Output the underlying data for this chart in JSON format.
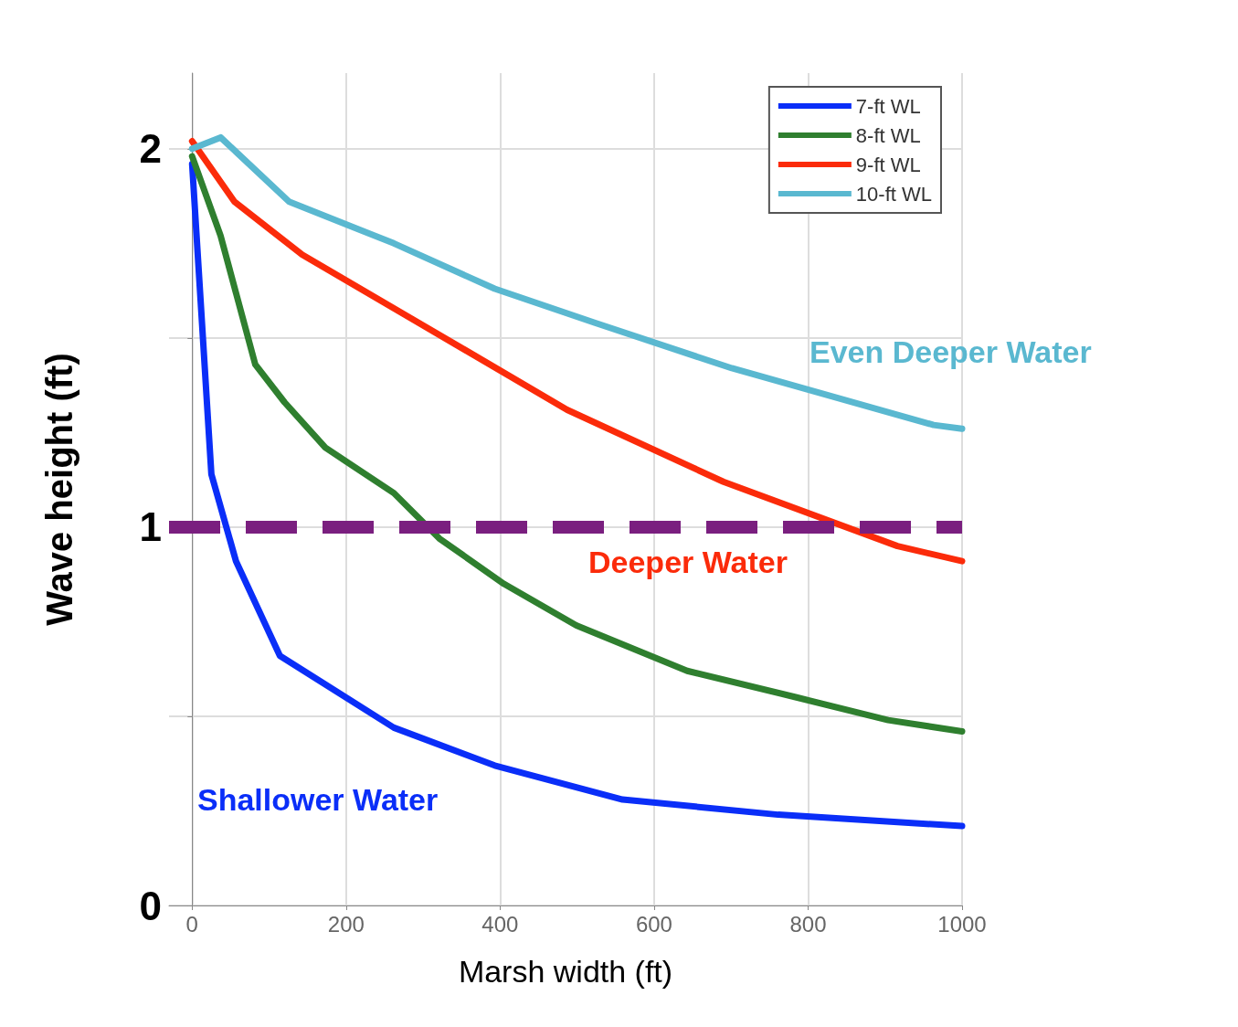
{
  "chart_data": {
    "type": "line",
    "xlabel": "Marsh width (ft)",
    "ylabel": "Wave height (ft)",
    "xlim": [
      -30,
      1000
    ],
    "xticks": [
      0,
      200,
      400,
      600,
      800,
      1000
    ],
    "ylim": [
      0,
      2.2
    ],
    "yticks": [
      0,
      {
        "value": 0.5,
        "label": null
      },
      1,
      {
        "value": 1.5,
        "label": null
      },
      2
    ],
    "grid": true,
    "legend": "top right",
    "marker": "none",
    "line_style": "solid",
    "series": [
      {
        "name": "7-ft WL",
        "color": "#0a2ef8",
        "x": [
          0,
          25,
          57,
          114,
          262,
          393,
          559,
          761,
          1000
        ],
        "values": [
          1.96,
          1.14,
          0.91,
          0.66,
          0.47,
          0.37,
          0.28,
          0.24,
          0.21
        ]
      },
      {
        "name": "8-ft WL",
        "color": "#2f7f2f",
        "x": [
          0,
          37,
          82,
          120,
          173,
          262,
          321,
          405,
          499,
          643,
          785,
          904,
          1000
        ],
        "values": [
          1.98,
          1.77,
          1.43,
          1.33,
          1.21,
          1.09,
          0.97,
          0.85,
          0.74,
          0.62,
          0.55,
          0.49,
          0.46
        ]
      },
      {
        "name": "9-ft WL",
        "color": "#fb2b0a",
        "x": [
          0,
          55,
          143,
          286,
          487,
          690,
          916,
          1000
        ],
        "values": [
          2.02,
          1.86,
          1.72,
          1.55,
          1.31,
          1.12,
          0.95,
          0.91
        ]
      },
      {
        "name": "10-ft WL",
        "color": "#5ab8d0",
        "x": [
          0,
          37,
          126,
          262,
          393,
          523,
          701,
          963,
          1000
        ],
        "values": [
          2.0,
          2.03,
          1.86,
          1.75,
          1.63,
          1.54,
          1.42,
          1.27,
          1.26
        ]
      }
    ],
    "ref_lines": [
      {
        "axis": "y",
        "value": 1,
        "label": null,
        "color": "#7a1f7f",
        "line_style": "dashed"
      }
    ],
    "annotations": [
      "Shallower Water",
      "Deeper Water",
      "Even Deeper Water"
    ]
  }
}
